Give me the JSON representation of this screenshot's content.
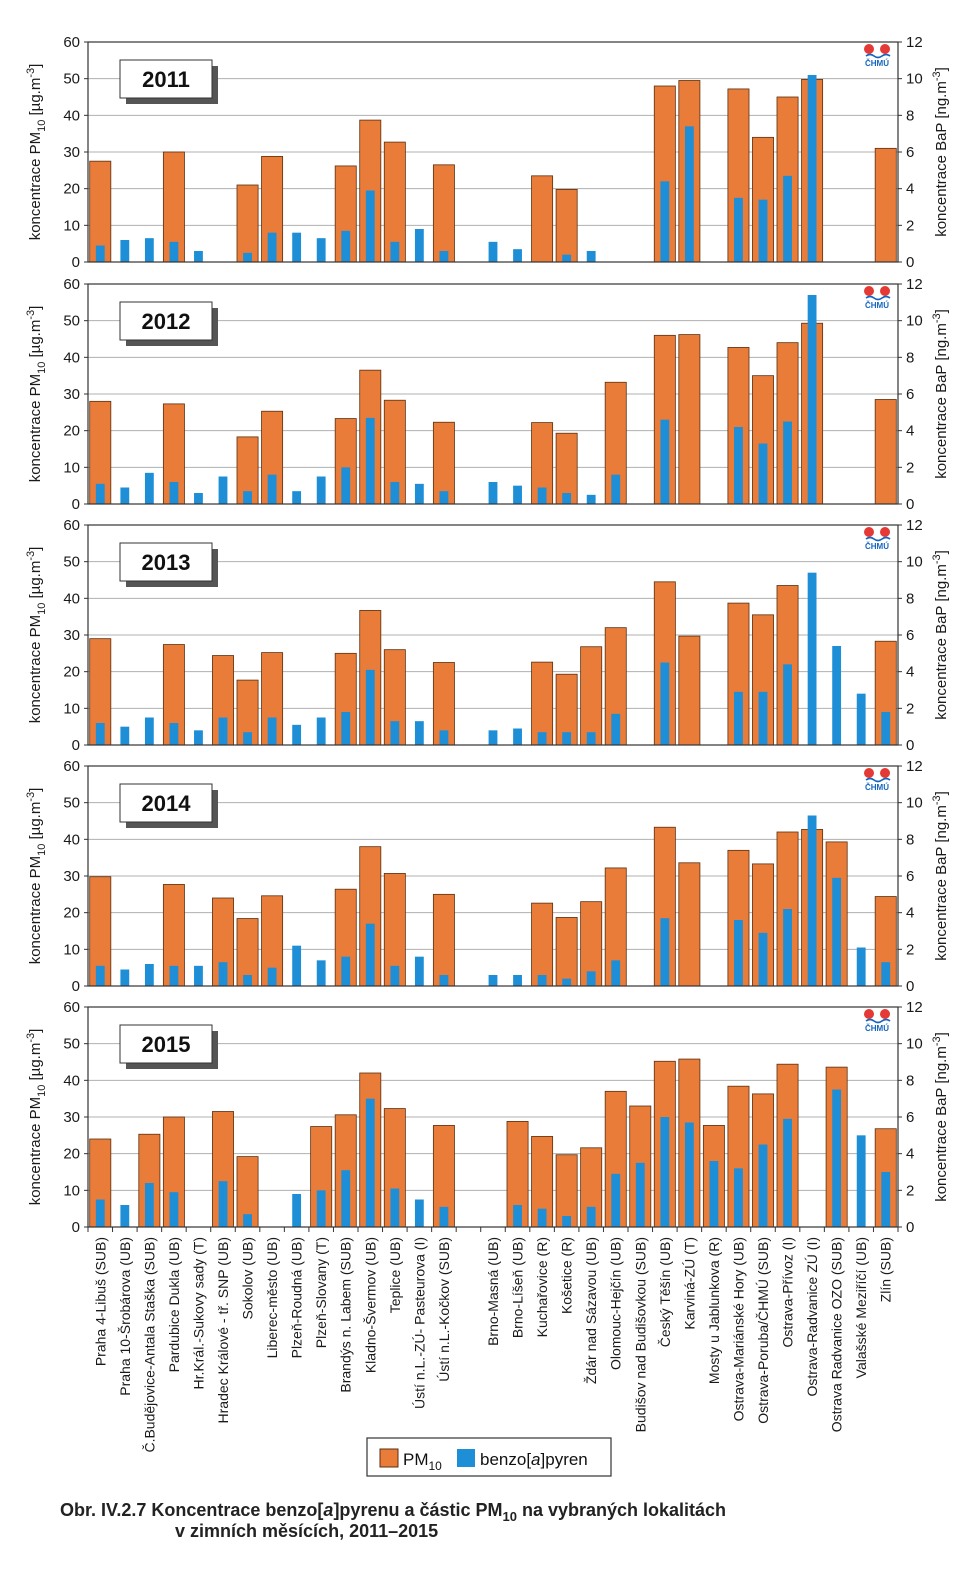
{
  "colors": {
    "pm10": "#ea7c3a",
    "bap": "#1e8fd6",
    "grid": "#b0b0b0"
  },
  "logo_text": "ČHMÚ",
  "y_left_label": {
    "main": "koncentrace PM",
    "sub": "10",
    "unit": " [µg.m",
    "sup": "-3",
    "end": "]"
  },
  "y_right_label": {
    "main": "koncentrace BaP [ng.m",
    "sup": "-3",
    "end": "]"
  },
  "legend": {
    "pm10_main": "PM",
    "pm10_sub": "10",
    "bap_pre": "benzo[",
    "bap_ital": "a",
    "bap_post": "]pyren"
  },
  "caption": {
    "line1_pre": "Obr. IV.2.7  Koncentrace benzo[",
    "line1_ital": "a",
    "line1_mid": "]pyrenu a částic PM",
    "line1_sub": "10",
    "line1_post": " na vybraných lokalitách",
    "line2": "v zimních měsících, 2011–2015"
  },
  "chart_data": {
    "type": "bar",
    "y_left": {
      "label": "koncentrace PM10 [µg.m-3]",
      "range": [
        0,
        60
      ],
      "ticks": [
        0,
        10,
        20,
        30,
        40,
        50,
        60
      ]
    },
    "y_right": {
      "label": "koncentrace BaP [ng.m-3]",
      "range": [
        0,
        12
      ],
      "ticks": [
        0,
        2,
        4,
        6,
        8,
        10,
        12
      ]
    },
    "grid": true,
    "legend_position": "bottom",
    "categories": [
      "Praha 4-Libuš (SUB)",
      "Praha 10-Šrobárova (UB)",
      "Č.Budějovice-Antala Staška (SUB)",
      "Pardubice Dukla (UB)",
      "Hr.Král.-Sukovy sady (T)",
      "Hradec Králové - tř. SNP (UB)",
      "Sokolov (UB)",
      "Liberec-město (UB)",
      "Plzeň-Roudná (UB)",
      "Plzeň-Slovany (T)",
      "Brandýs n. Labem (SUB)",
      "Kladno-Švermov (UB)",
      "Teplice (UB)",
      "Ústí n.L.-ZÚ- Pasteurova (I)",
      "Ústí n.L.-Kočkov (SUB)",
      "",
      "Brno-Masná (UB)",
      "Brno-Líšeň (UB)",
      "Kuchařovice (R)",
      "Košetice (R)",
      "Ždár nad Sázavou (UB)",
      "Olomouc-Hejčín (UB)",
      "Budišov nad Budišovkou (SUB)",
      "Český Těšín (UB)",
      "Karviná-ZÚ (T)",
      "Mosty u Jablunkova (R)",
      "Ostrava-Mariánské Hory (UB)",
      "Ostrava-Poruba/ČHMÚ (SUB)",
      "Ostrava-Přívoz (I)",
      "Ostrava-Radvanice ZÚ (I)",
      "Ostrava Radvanice OZO (SUB)",
      "Valašské Meziříčí (UB)",
      "Zlín (SUB)"
    ],
    "panels": [
      {
        "year": "2011",
        "series": [
          {
            "name": "PM10",
            "axis": "left",
            "values": [
              27.5,
              null,
              null,
              30,
              null,
              null,
              21,
              28.8,
              null,
              null,
              26.2,
              38.7,
              32.7,
              null,
              26.5,
              null,
              null,
              null,
              23.5,
              19.8,
              null,
              null,
              null,
              48,
              49.5,
              null,
              47.2,
              34,
              45,
              49.8,
              null,
              null,
              31
            ]
          },
          {
            "name": "benzo[a]pyren",
            "axis": "right",
            "values": [
              0.9,
              1.2,
              1.3,
              1.1,
              0.6,
              null,
              0.5,
              1.6,
              1.6,
              1.3,
              1.7,
              3.9,
              1.1,
              1.8,
              0.6,
              null,
              1.1,
              0.7,
              null,
              0.4,
              0.6,
              null,
              null,
              4.4,
              7.4,
              null,
              3.5,
              3.4,
              4.7,
              10.2,
              null,
              null,
              null
            ]
          }
        ]
      },
      {
        "year": "2012",
        "series": [
          {
            "name": "PM10",
            "axis": "left",
            "values": [
              28,
              null,
              null,
              27.3,
              null,
              null,
              18.3,
              25.3,
              null,
              null,
              23.3,
              36.5,
              28.3,
              null,
              22.3,
              null,
              null,
              null,
              22.2,
              19.3,
              null,
              33.2,
              null,
              46,
              46.2,
              null,
              42.7,
              35,
              44,
              49.3,
              null,
              null,
              28.5
            ]
          },
          {
            "name": "benzo[a]pyren",
            "axis": "right",
            "values": [
              1.1,
              0.9,
              1.7,
              1.2,
              0.6,
              1.5,
              0.7,
              1.6,
              0.7,
              1.5,
              2.0,
              4.7,
              1.2,
              1.1,
              0.7,
              null,
              1.2,
              1.0,
              0.9,
              0.6,
              0.5,
              1.6,
              null,
              4.6,
              null,
              null,
              4.2,
              3.3,
              4.5,
              11.4,
              null,
              null,
              null
            ]
          }
        ]
      },
      {
        "year": "2013",
        "series": [
          {
            "name": "PM10",
            "axis": "left",
            "values": [
              29,
              null,
              null,
              27.4,
              null,
              24.4,
              17.7,
              25.2,
              null,
              null,
              25,
              36.7,
              26,
              null,
              22.5,
              null,
              null,
              null,
              22.6,
              19.3,
              26.8,
              32,
              null,
              44.5,
              29.7,
              null,
              38.7,
              35.5,
              43.5,
              null,
              null,
              null,
              28.3
            ]
          },
          {
            "name": "benzo[a]pyren",
            "axis": "right",
            "values": [
              1.2,
              1.0,
              1.5,
              1.2,
              0.8,
              1.5,
              0.7,
              1.5,
              1.1,
              1.5,
              1.8,
              4.1,
              1.3,
              1.3,
              0.8,
              null,
              0.8,
              0.9,
              0.7,
              0.7,
              0.7,
              1.7,
              null,
              4.5,
              null,
              null,
              2.9,
              2.9,
              4.4,
              9.4,
              5.4,
              2.8,
              1.8
            ]
          }
        ]
      },
      {
        "year": "2014",
        "series": [
          {
            "name": "PM10",
            "axis": "left",
            "values": [
              29.8,
              null,
              null,
              27.7,
              null,
              24,
              18.4,
              24.6,
              null,
              null,
              26.4,
              38,
              30.7,
              null,
              25,
              null,
              null,
              null,
              22.6,
              18.7,
              23,
              32.2,
              null,
              43.3,
              33.6,
              null,
              37,
              33.3,
              42,
              42.7,
              39.3,
              null,
              24.4
            ]
          },
          {
            "name": "benzo[a]pyren",
            "axis": "right",
            "values": [
              1.1,
              0.9,
              1.2,
              1.1,
              1.1,
              1.3,
              0.6,
              1.0,
              2.2,
              1.4,
              1.6,
              3.4,
              1.1,
              1.6,
              0.6,
              null,
              0.6,
              0.6,
              0.6,
              0.4,
              0.8,
              1.4,
              null,
              3.7,
              null,
              null,
              3.6,
              2.9,
              4.2,
              9.3,
              5.9,
              2.1,
              1.3
            ]
          }
        ]
      },
      {
        "year": "2015",
        "series": [
          {
            "name": "PM10",
            "axis": "left",
            "values": [
              24,
              null,
              25.3,
              30,
              null,
              31.5,
              19.2,
              null,
              null,
              27.4,
              30.6,
              42,
              32.3,
              null,
              27.7,
              null,
              null,
              28.8,
              24.7,
              19.7,
              21.6,
              37,
              33,
              45.2,
              45.8,
              27.7,
              38.4,
              36.3,
              44.4,
              null,
              43.6,
              null,
              26.8
            ]
          },
          {
            "name": "benzo[a]pyren",
            "axis": "right",
            "values": [
              1.5,
              1.2,
              2.4,
              1.9,
              null,
              2.5,
              0.7,
              null,
              1.8,
              2.0,
              3.1,
              7.0,
              2.1,
              1.5,
              1.1,
              null,
              null,
              1.2,
              1.0,
              0.6,
              1.1,
              2.9,
              3.5,
              6.0,
              5.7,
              3.6,
              3.2,
              4.5,
              5.9,
              null,
              7.5,
              5.0,
              3.0
            ]
          }
        ]
      }
    ]
  }
}
